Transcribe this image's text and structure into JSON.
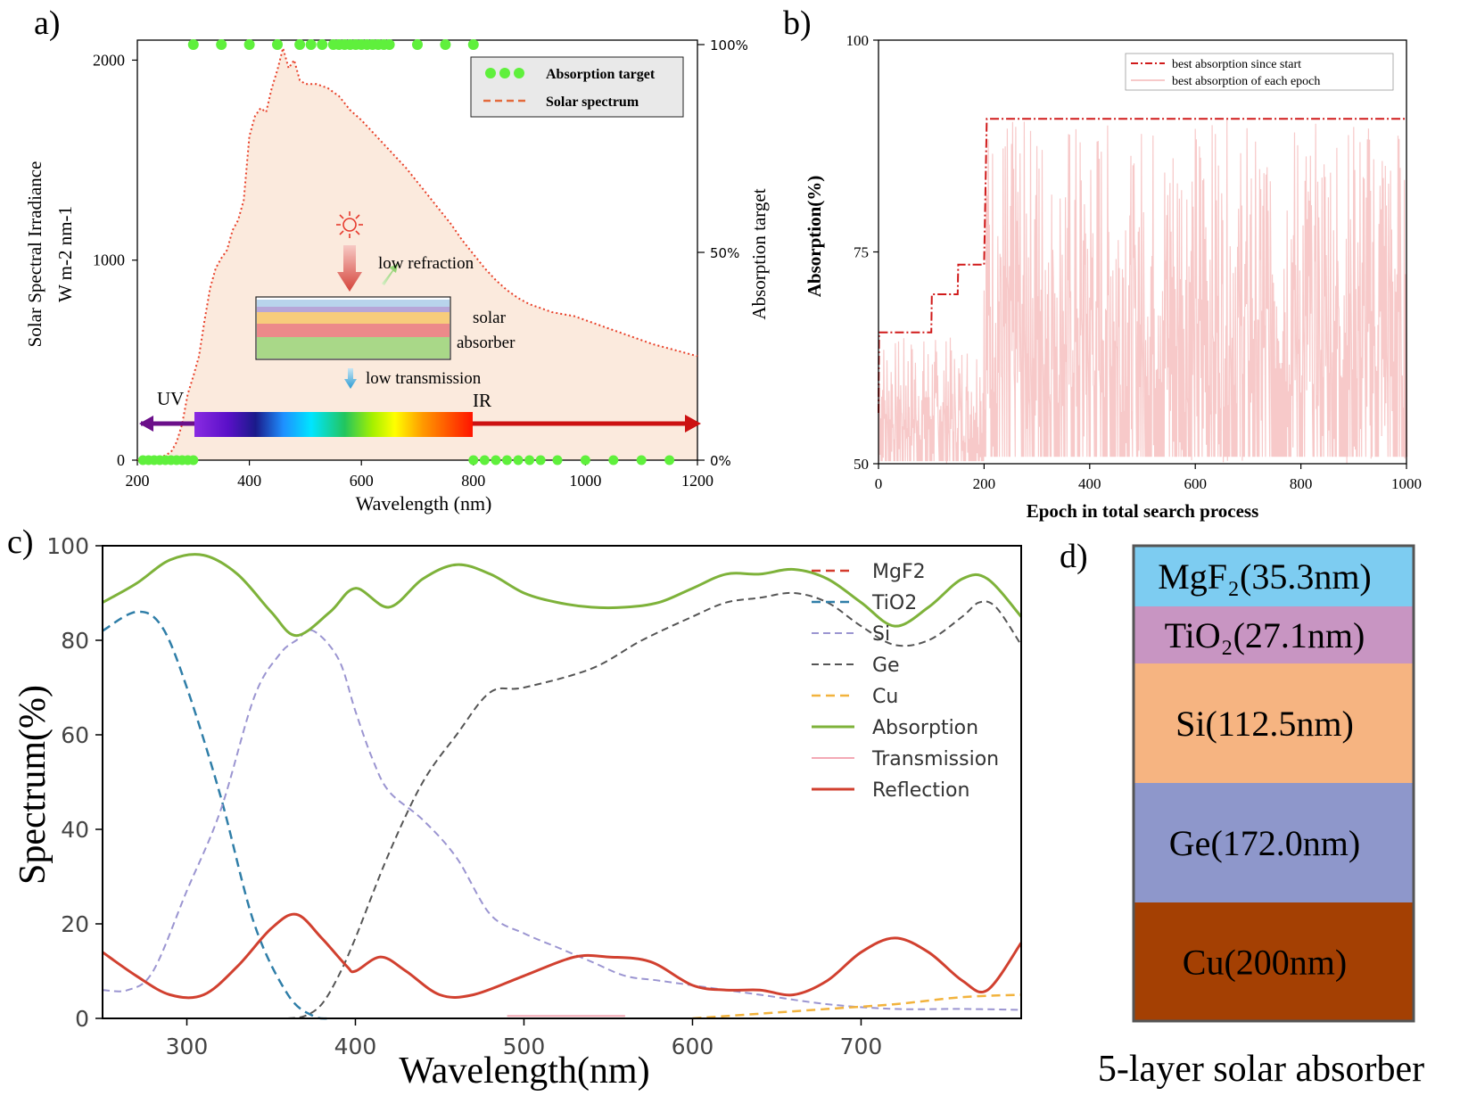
{
  "chart_data": [
    {
      "panel": "a)",
      "type": "line",
      "xlabel": "Wavelength (nm)",
      "ylabel": "Solar Spectral Irradiance",
      "ylabel_units": "W m-2 nm-1",
      "ylabel_right": "Absorption target",
      "xlim": [
        200,
        1200
      ],
      "ylim": [
        0,
        2100
      ],
      "xticks": [
        "200",
        "400",
        "600",
        "800",
        "1000",
        "1200"
      ],
      "yticks": [
        "0",
        "1000",
        "2000"
      ],
      "yticks_right": [
        "0%",
        "50%",
        "100%"
      ],
      "legend": [
        "Absorption target",
        "Solar spectrum"
      ],
      "solar_spectrum": {
        "x": [
          200,
          220,
          240,
          260,
          270,
          280,
          290,
          300,
          310,
          320,
          330,
          340,
          350,
          360,
          370,
          380,
          390,
          400,
          410,
          420,
          430,
          440,
          450,
          460,
          470,
          480,
          490,
          500,
          520,
          540,
          560,
          580,
          600,
          620,
          640,
          660,
          680,
          700,
          720,
          740,
          760,
          780,
          800,
          820,
          840,
          860,
          880,
          900,
          920,
          940,
          960,
          980,
          1000,
          1040,
          1080,
          1120,
          1160,
          1200
        ],
        "y": [
          0,
          2,
          10,
          40,
          90,
          180,
          330,
          420,
          520,
          700,
          860,
          960,
          1010,
          1050,
          1150,
          1200,
          1300,
          1620,
          1720,
          1760,
          1740,
          1860,
          1950,
          2060,
          1960,
          2000,
          1900,
          1880,
          1880,
          1860,
          1820,
          1750,
          1700,
          1640,
          1580,
          1520,
          1460,
          1390,
          1320,
          1250,
          1180,
          1100,
          1030,
          960,
          900,
          850,
          810,
          780,
          760,
          740,
          730,
          720,
          700,
          660,
          620,
          580,
          550,
          520
        ]
      },
      "absorption_target_top_x": [
        300,
        350,
        400,
        450,
        490,
        510,
        530,
        550,
        560,
        570,
        580,
        590,
        600,
        610,
        620,
        630,
        640,
        650,
        700,
        750,
        800
      ],
      "absorption_target_bottom_x": [
        210,
        220,
        230,
        240,
        250,
        260,
        270,
        280,
        290,
        300,
        800,
        820,
        840,
        860,
        880,
        900,
        920,
        950,
        1000,
        1050,
        1100,
        1150
      ],
      "annotations": {
        "low_refraction": "low refraction",
        "low_transmission": "low transmission",
        "solar": "solar",
        "absorber": "absorber",
        "uv": "UV",
        "ir": "IR"
      }
    },
    {
      "panel": "b)",
      "type": "line",
      "xlabel": "Epoch in total search process",
      "ylabel": "Absorption(%)",
      "xlim": [
        0,
        1000
      ],
      "ylim": [
        50,
        100
      ],
      "xticks": [
        "0",
        "200",
        "400",
        "600",
        "800",
        "1000"
      ],
      "yticks": [
        "50",
        "75",
        "100"
      ],
      "legend": [
        "best absorption since start",
        "best absorption of each epoch"
      ],
      "best_since_start": {
        "x": [
          0,
          1,
          100,
          101,
          150,
          151,
          200,
          205,
          1000
        ],
        "y": [
          56,
          65.5,
          65.5,
          70,
          70,
          73.5,
          73.5,
          90.7,
          90.7
        ]
      },
      "best_each_epoch_band": {
        "low": 50,
        "high": 90.7,
        "early_high": 65
      }
    },
    {
      "panel": "c)",
      "type": "line",
      "xlabel": "Wavelength(nm)",
      "ylabel": "Spectrum(%)",
      "xlim": [
        250,
        795
      ],
      "ylim": [
        0,
        100
      ],
      "xticks": [
        "300",
        "400",
        "500",
        "600",
        "700"
      ],
      "yticks": [
        "0",
        "20",
        "40",
        "60",
        "80",
        "100"
      ],
      "legend": [
        "MgF2",
        "TiO2",
        "Si",
        "Ge",
        "Cu",
        "Absorption",
        "Transmission",
        "Reflection"
      ],
      "series": [
        {
          "name": "TiO2",
          "x": [
            250,
            270,
            285,
            300,
            320,
            340,
            360,
            375,
            385
          ],
          "y": [
            82,
            86,
            83,
            70,
            47,
            20,
            5,
            0.5,
            0
          ]
        },
        {
          "name": "Si",
          "x": [
            250,
            265,
            280,
            300,
            320,
            340,
            355,
            365,
            375,
            390,
            400,
            410,
            420,
            440,
            460,
            480,
            500,
            520,
            540,
            560,
            580,
            600,
            640,
            680,
            720,
            760,
            795
          ],
          "y": [
            6,
            6,
            10,
            27,
            44,
            68,
            77,
            80,
            82,
            76,
            65,
            55,
            48,
            42,
            34,
            22,
            18,
            15,
            12,
            9,
            8,
            7,
            5,
            3,
            2,
            2,
            1.8
          ]
        },
        {
          "name": "Ge",
          "x": [
            360,
            370,
            380,
            390,
            400,
            420,
            440,
            460,
            480,
            500,
            540,
            570,
            600,
            620,
            640,
            660,
            680,
            700,
            720,
            740,
            760,
            770,
            780,
            795
          ],
          "y": [
            0,
            0.5,
            3,
            9,
            17,
            35,
            50,
            60,
            69,
            70,
            74,
            80,
            85,
            88,
            89,
            90,
            88,
            83,
            79,
            80,
            85,
            88,
            87,
            79
          ]
        },
        {
          "name": "Cu",
          "x": [
            600,
            640,
            680,
            720,
            760,
            795
          ],
          "y": [
            0,
            1,
            2,
            3,
            4.5,
            5
          ]
        },
        {
          "name": "Transmission",
          "x": [
            490,
            560
          ],
          "y": [
            0.5,
            0.5
          ]
        },
        {
          "name": "Absorption",
          "x": [
            250,
            270,
            290,
            310,
            330,
            350,
            365,
            385,
            400,
            420,
            440,
            460,
            480,
            500,
            520,
            540,
            560,
            580,
            600,
            620,
            640,
            660,
            680,
            700,
            720,
            740,
            760,
            775,
            795
          ],
          "y": [
            88,
            92,
            97,
            98,
            94,
            86,
            81,
            86,
            91,
            87,
            93,
            96,
            94,
            90,
            88,
            87,
            87,
            88,
            91,
            94,
            94,
            95,
            93,
            88,
            83,
            87,
            93,
            93,
            85
          ]
        },
        {
          "name": "Reflection",
          "x": [
            250,
            270,
            290,
            310,
            330,
            350,
            365,
            380,
            395,
            400,
            415,
            430,
            450,
            470,
            500,
            530,
            550,
            575,
            600,
            620,
            640,
            660,
            680,
            700,
            720,
            740,
            760,
            775,
            795
          ],
          "y": [
            14,
            9,
            5,
            5,
            11,
            19,
            22,
            17,
            11,
            10,
            13,
            10,
            5,
            5,
            9,
            13,
            13,
            12,
            7,
            6,
            6,
            5,
            8,
            14,
            17,
            14,
            8,
            6,
            16
          ]
        }
      ]
    },
    {
      "panel": "d)",
      "type": "table",
      "title": "5-layer solar absorber",
      "layers": [
        {
          "label": "MgF₂(35.3nm)",
          "color": "#7dccf1"
        },
        {
          "label": "TiO₂(27.1nm)",
          "color": "#c895c2"
        },
        {
          "label": "Si(112.5nm)",
          "color": "#f6b481"
        },
        {
          "label": "Ge(172.0nm)",
          "color": "#8e97cb"
        },
        {
          "label": "Cu(200nm)",
          "color": "#a44003"
        }
      ]
    }
  ],
  "colors": {
    "solar": "#e8412a",
    "fill": "#fbeadd",
    "target": "#5ff03c",
    "best_start": "#d01a1a",
    "best_epoch": "#f7c9c9",
    "mgf2": "#d43b2d",
    "tio2": "#2f7ea8",
    "si": "#9b95d1",
    "ge": "#555555",
    "cu": "#f2b33d",
    "absorption": "#7eb23a",
    "transmission": "#f3a9b5",
    "reflection": "#d1402f"
  }
}
